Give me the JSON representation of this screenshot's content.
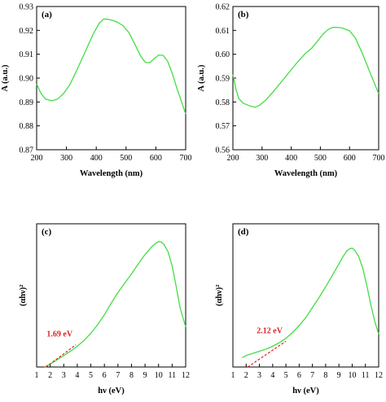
{
  "colors": {
    "curve": "#44dd44",
    "fit_line": "#dd2222",
    "annotation": "#dd2222",
    "axis": "#000000"
  },
  "chart_data": [
    {
      "panel": "(a)",
      "type": "line",
      "xlabel": "Wavelength (nm)",
      "ylabel": "A (a.u.)",
      "xlim": [
        200,
        700
      ],
      "ylim": [
        0.87,
        0.93
      ],
      "xticks": [
        "200",
        "300",
        "400",
        "500",
        "600",
        "700"
      ],
      "yticks": [
        "0.87",
        "0.88",
        "0.89",
        "0.90",
        "0.91",
        "0.92",
        "0.93"
      ],
      "grid": false,
      "series": [
        {
          "x": [
            200,
            215,
            230,
            250,
            270,
            290,
            310,
            330,
            350,
            370,
            390,
            410,
            425,
            440,
            455,
            470,
            490,
            510,
            530,
            550,
            565,
            580,
            595,
            610,
            625,
            640,
            655,
            670,
            685,
            700
          ],
          "y": [
            0.8975,
            0.8935,
            0.8912,
            0.8905,
            0.8912,
            0.8935,
            0.897,
            0.902,
            0.9075,
            0.913,
            0.9185,
            0.923,
            0.9248,
            0.9246,
            0.9242,
            0.9235,
            0.922,
            0.919,
            0.914,
            0.909,
            0.9065,
            0.9065,
            0.9082,
            0.9097,
            0.9095,
            0.907,
            0.902,
            0.896,
            0.8905,
            0.885
          ]
        }
      ]
    },
    {
      "panel": "(b)",
      "type": "line",
      "xlabel": "Wavelength (nm)",
      "ylabel": "A (a.u.)",
      "xlim": [
        200,
        700
      ],
      "ylim": [
        0.56,
        0.62
      ],
      "xticks": [
        "200",
        "300",
        "400",
        "500",
        "600",
        "700"
      ],
      "yticks": [
        "0.56",
        "0.57",
        "0.58",
        "0.59",
        "0.60",
        "0.61",
        "0.62"
      ],
      "grid": false,
      "series": [
        {
          "x": [
            200,
            210,
            220,
            235,
            255,
            275,
            290,
            310,
            335,
            360,
            390,
            420,
            450,
            470,
            490,
            510,
            525,
            540,
            555,
            575,
            600,
            620,
            640,
            660,
            680,
            700
          ],
          "y": [
            0.5915,
            0.5855,
            0.5815,
            0.5795,
            0.5785,
            0.5778,
            0.5785,
            0.5805,
            0.5838,
            0.5875,
            0.592,
            0.5965,
            0.6005,
            0.6025,
            0.6055,
            0.6085,
            0.6102,
            0.6112,
            0.6113,
            0.611,
            0.6098,
            0.6068,
            0.6015,
            0.5955,
            0.5895,
            0.5835
          ]
        }
      ]
    },
    {
      "panel": "(c)",
      "type": "line",
      "xlabel": "hν (eV)",
      "ylabel": "(αhν)²",
      "xlim": [
        1,
        12
      ],
      "ylim": [
        0,
        1
      ],
      "xticks": [
        "1",
        "2",
        "3",
        "4",
        "5",
        "6",
        "7",
        "8",
        "9",
        "10",
        "11",
        "12"
      ],
      "yticks": [],
      "grid": false,
      "annotation": "1.69 eV",
      "fit_line": {
        "x": [
          1.69,
          3.9
        ],
        "y": [
          0.0,
          0.155
        ]
      },
      "series": [
        {
          "x": [
            1.6,
            2.0,
            2.5,
            3.0,
            3.5,
            4.0,
            4.5,
            5.0,
            5.5,
            6.0,
            6.5,
            7.0,
            7.5,
            8.0,
            8.5,
            9.0,
            9.5,
            9.8,
            10.0,
            10.2,
            10.4,
            10.7,
            11.0,
            11.3,
            11.6,
            12.0
          ],
          "y": [
            0.0,
            0.02,
            0.05,
            0.08,
            0.11,
            0.145,
            0.185,
            0.235,
            0.295,
            0.365,
            0.445,
            0.52,
            0.585,
            0.65,
            0.72,
            0.785,
            0.84,
            0.865,
            0.875,
            0.872,
            0.855,
            0.805,
            0.705,
            0.56,
            0.41,
            0.28
          ]
        }
      ]
    },
    {
      "panel": "(d)",
      "type": "line",
      "xlabel": "hν (eV)",
      "ylabel": "(αhν)²",
      "xlim": [
        1,
        12
      ],
      "ylim": [
        0,
        1
      ],
      "xticks": [
        "1",
        "2",
        "3",
        "4",
        "5",
        "6",
        "7",
        "8",
        "9",
        "10",
        "11",
        "12"
      ],
      "yticks": [],
      "grid": false,
      "annotation": "2.12 eV",
      "fit_line": {
        "x": [
          2.12,
          5.0
        ],
        "y": [
          0.0,
          0.18
        ]
      },
      "series": [
        {
          "x": [
            1.7,
            2.0,
            2.5,
            3.0,
            3.5,
            4.0,
            4.5,
            5.0,
            5.5,
            6.0,
            6.5,
            7.0,
            7.5,
            8.0,
            8.5,
            9.0,
            9.3,
            9.6,
            9.8,
            10.0,
            10.2,
            10.5,
            10.8,
            11.1,
            11.4,
            11.7,
            12.0
          ],
          "y": [
            0.065,
            0.08,
            0.095,
            0.11,
            0.125,
            0.145,
            0.17,
            0.2,
            0.24,
            0.29,
            0.345,
            0.415,
            0.485,
            0.56,
            0.64,
            0.72,
            0.77,
            0.81,
            0.825,
            0.83,
            0.815,
            0.77,
            0.69,
            0.57,
            0.44,
            0.32,
            0.23
          ]
        }
      ]
    }
  ]
}
